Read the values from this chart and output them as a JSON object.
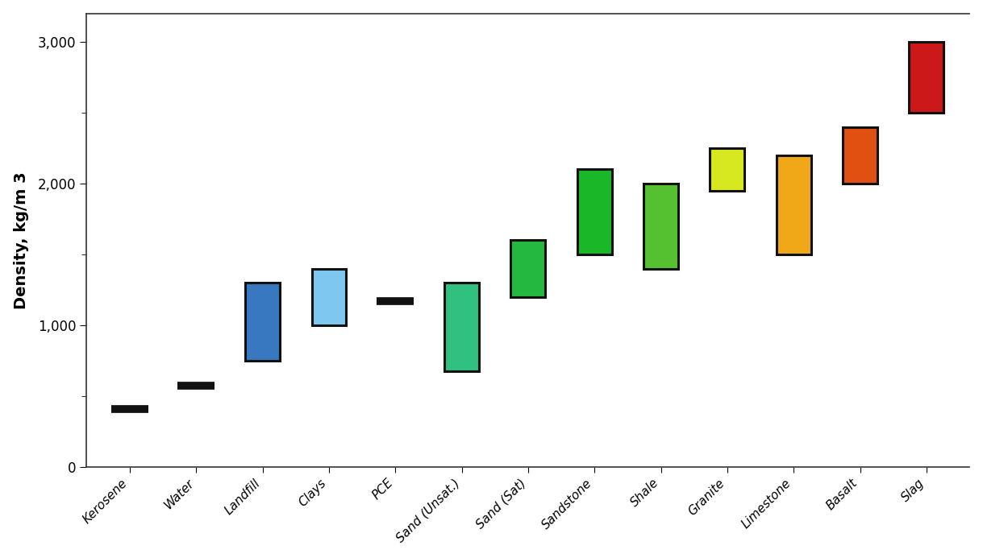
{
  "ylabel": "Density, kg/m 3",
  "ylim": [
    0,
    3200
  ],
  "yticks": [
    0,
    1000,
    2000,
    3000
  ],
  "ytick_labels": [
    "0",
    "1,000",
    "2,000",
    "3,000"
  ],
  "materials": [
    {
      "name": "Kerosene",
      "low": 390,
      "high": 430,
      "is_line": true,
      "color": "#111111"
    },
    {
      "name": "Water",
      "low": 560,
      "high": 590,
      "is_line": true,
      "color": "#111111"
    },
    {
      "name": "Landfill",
      "low": 750,
      "high": 1300,
      "is_line": false,
      "color": "#3878c0"
    },
    {
      "name": "Clays",
      "low": 1000,
      "high": 1400,
      "is_line": false,
      "color": "#7ec8f0"
    },
    {
      "name": "PCE",
      "low": 1150,
      "high": 1195,
      "is_line": true,
      "color": "#111111"
    },
    {
      "name": "Sand (Unsat.)",
      "low": 680,
      "high": 1300,
      "is_line": false,
      "color": "#30c080"
    },
    {
      "name": "Sand (Sat)",
      "low": 1200,
      "high": 1600,
      "is_line": false,
      "color": "#25b840"
    },
    {
      "name": "Sandstone",
      "low": 1500,
      "high": 2100,
      "is_line": false,
      "color": "#18b828"
    },
    {
      "name": "Shale",
      "low": 1400,
      "high": 2000,
      "is_line": false,
      "color": "#55c030"
    },
    {
      "name": "Granite",
      "low": 1950,
      "high": 2250,
      "is_line": false,
      "color": "#d8e820"
    },
    {
      "name": "Limestone",
      "low": 1500,
      "high": 2200,
      "is_line": false,
      "color": "#f0a818"
    },
    {
      "name": "Basalt",
      "low": 2000,
      "high": 2400,
      "is_line": false,
      "color": "#e05010"
    },
    {
      "name": "Slag",
      "low": 2500,
      "high": 3000,
      "is_line": false,
      "color": "#cc1818"
    }
  ],
  "box_width": 0.52,
  "line_halfwidth": 0.28,
  "line_thickness": 7,
  "edge_color": "#111111",
  "background_color": "#ffffff",
  "figure_bg": "#ffffff",
  "ylabel_fontsize": 14,
  "ylabel_fontweight": "bold",
  "ytick_fontsize": 12,
  "xtick_fontsize": 11
}
